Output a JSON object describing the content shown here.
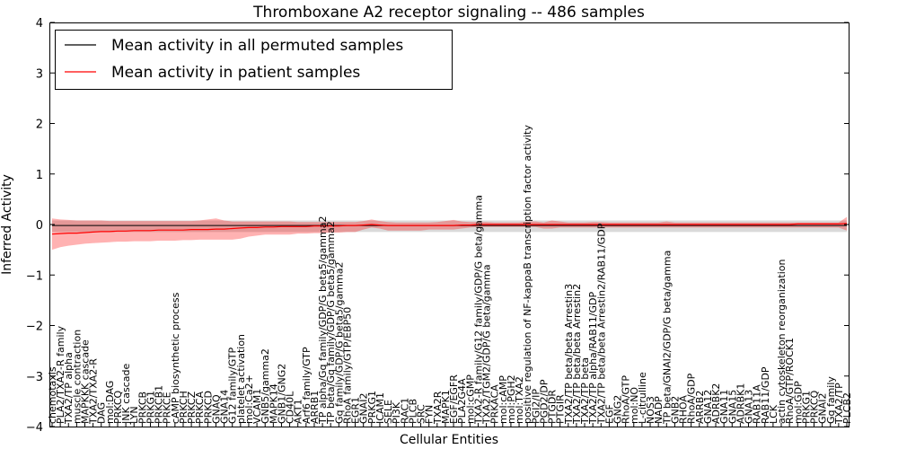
{
  "chart_data": {
    "type": "line",
    "title": "Thromboxane A2 receptor signaling -- 486 samples",
    "xlabel": "Cellular Entities",
    "ylabel": "Inferred Activity",
    "ylim": [
      -4,
      4
    ],
    "yticks": [
      -4,
      -3,
      -2,
      -1,
      0,
      1,
      2,
      3,
      4
    ],
    "grid": false,
    "legend_position": "top-left",
    "legend": [
      {
        "label": "Mean activity in all permuted samples",
        "color": "#000000"
      },
      {
        "label": "Mean activity in patient samples",
        "color": "#ff0000"
      }
    ],
    "categories": [
      "chemotaxis",
      "PLA2/TXA2-R family",
      "TXA2/TP alpha",
      "muscle contraction",
      "MAPKKK cascade",
      "TXA2/TXA2-R",
      "DAG",
      "mol:DAG",
      "PRKCQ",
      "JNK cascade",
      "LYN",
      "PRKCB",
      "PRKG1",
      "PRKCB1",
      "PRKCE",
      "cAMP biosynthetic process",
      "PRKCH",
      "PRKCZ",
      "PRKCA",
      "PRKCD",
      "GNAQ",
      "GNA14",
      "G12 family/GTP",
      "platelet activation",
      "mol:Ca2+",
      "VCAM1",
      "GNB5/gamma2",
      "MAPK14",
      "GNB1/GNG2",
      "CD40L",
      "AKT1",
      "Arf6 family/GTP",
      "ARRB1",
      "TP alpha/Gq family/GDP/G beta5/gamma2",
      "TP beta/Gq family/GDP/G beta5/gamma2",
      "Gq family/GDP/G beta5/gamma2",
      "RhoA family/GTP/EBP50",
      "EGR1",
      "GNAI2",
      "PRKG1",
      "ICAM1",
      "SELE",
      "PI3K",
      "RAC1",
      "PLCB",
      "SRC",
      "FYN",
      "TXA2R",
      "MAPK1",
      "EGF/EGFR",
      "PLA2G4A",
      "mol:cGMP",
      "TXA2-R family/G12 family/GDP/G beta/gamma",
      "TXA2/TGM2/GDP/G beta/gamma",
      "PRKACA",
      "mol:cAMP",
      "mol:PGH2",
      "mol:TXA2",
      "positive regulation of NF-kappaB transcription factor activity",
      "PGI2/IP",
      "PGD2/DP",
      "PTGDR",
      "PTGIR",
      "TXA2/TP beta/beta Arrestin3",
      "TXA2/TP beta/beta Arrestin2",
      "TXA2/TP beta",
      "TXA2/TP alpha/RAB11/GDP",
      "TXA2/TP beta/beta Arrestin2/RAB11/GDP",
      "EGF",
      "GNG2",
      "RhoA/GTP",
      "mol:NO",
      "L-citrulline",
      "NOS3",
      "NADP",
      "TP beta/GNAI2/GDP/G beta/gamma",
      "GNB2",
      "RHOA",
      "RhoA/GDP",
      "ARRB2",
      "GNA12",
      "ADRBK2",
      "GNA11",
      "GNA15",
      "ADRBK1",
      "GNA13",
      "RAB11A",
      "RAB11/GDP",
      "LCK",
      "actin cytoskeleton reorganization",
      "RhoA/GTP/ROCK1",
      "mol:GDP",
      "PRKG1",
      "PRKCQ",
      "GNAI2",
      "Gq family",
      "TXA2/TP",
      "PLCB2"
    ],
    "series": [
      {
        "name": "Mean activity in all permuted samples",
        "color": "#000000",
        "values": [
          -0.02,
          -0.02,
          -0.02,
          -0.02,
          -0.02,
          -0.02,
          -0.02,
          -0.02,
          -0.02,
          -0.02,
          -0.02,
          -0.02,
          -0.02,
          -0.02,
          -0.02,
          -0.02,
          -0.02,
          -0.02,
          -0.02,
          -0.02,
          -0.02,
          -0.02,
          -0.02,
          -0.02,
          -0.02,
          -0.02,
          -0.02,
          -0.02,
          -0.02,
          -0.02,
          -0.02,
          -0.02,
          -0.02,
          -0.02,
          -0.02,
          -0.02,
          -0.02,
          -0.02,
          -0.02,
          -0.02,
          -0.02,
          -0.02,
          -0.02,
          -0.02,
          -0.02,
          -0.02,
          -0.02,
          -0.02,
          -0.02,
          -0.02,
          -0.02,
          -0.02,
          -0.02,
          -0.02,
          -0.02,
          -0.02,
          -0.02,
          -0.02,
          -0.02,
          -0.02,
          -0.02,
          -0.02,
          -0.02,
          -0.02,
          -0.02,
          -0.02,
          -0.02,
          -0.02,
          -0.02,
          -0.02,
          -0.02,
          -0.02,
          -0.02,
          -0.02,
          -0.02,
          -0.02,
          -0.02,
          -0.02,
          -0.02,
          -0.02,
          -0.02,
          -0.02,
          -0.02,
          -0.02,
          -0.02,
          -0.02,
          -0.02,
          -0.02,
          -0.02,
          -0.02,
          -0.02,
          -0.02,
          -0.02,
          -0.02,
          -0.02,
          -0.02,
          -0.02,
          -0.02
        ],
        "lower": [
          -0.15,
          -0.15,
          -0.15,
          -0.15,
          -0.15,
          -0.15,
          -0.15,
          -0.15,
          -0.15,
          -0.15,
          -0.15,
          -0.15,
          -0.15,
          -0.15,
          -0.15,
          -0.15,
          -0.15,
          -0.15,
          -0.15,
          -0.15,
          -0.15,
          -0.15,
          -0.15,
          -0.15,
          -0.15,
          -0.15,
          -0.15,
          -0.15,
          -0.15,
          -0.15,
          -0.15,
          -0.15,
          -0.15,
          -0.15,
          -0.15,
          -0.15,
          -0.15,
          -0.15,
          -0.15,
          -0.15,
          -0.15,
          -0.15,
          -0.15,
          -0.15,
          -0.15,
          -0.15,
          -0.15,
          -0.15,
          -0.15,
          -0.15,
          -0.15,
          -0.15,
          -0.15,
          -0.15,
          -0.15,
          -0.15,
          -0.15,
          -0.15,
          -0.15,
          -0.15,
          -0.15,
          -0.15,
          -0.15,
          -0.15,
          -0.15,
          -0.15,
          -0.15,
          -0.15,
          -0.15,
          -0.15,
          -0.15,
          -0.15,
          -0.15,
          -0.15,
          -0.15,
          -0.15,
          -0.15,
          -0.15,
          -0.15,
          -0.15,
          -0.15,
          -0.15,
          -0.15,
          -0.15,
          -0.15,
          -0.15,
          -0.15,
          -0.15,
          -0.15,
          -0.15,
          -0.15,
          -0.15,
          -0.15,
          -0.15,
          -0.15,
          -0.15,
          -0.15,
          -0.15
        ],
        "upper": [
          0.08,
          0.08,
          0.08,
          0.08,
          0.08,
          0.08,
          0.08,
          0.08,
          0.08,
          0.08,
          0.08,
          0.08,
          0.08,
          0.08,
          0.08,
          0.08,
          0.08,
          0.08,
          0.08,
          0.08,
          0.08,
          0.08,
          0.08,
          0.08,
          0.08,
          0.08,
          0.08,
          0.08,
          0.08,
          0.08,
          0.08,
          0.08,
          0.08,
          0.08,
          0.08,
          0.08,
          0.08,
          0.08,
          0.08,
          0.08,
          0.08,
          0.08,
          0.08,
          0.08,
          0.08,
          0.08,
          0.08,
          0.08,
          0.08,
          0.08,
          0.08,
          0.08,
          0.08,
          0.08,
          0.08,
          0.08,
          0.08,
          0.08,
          0.08,
          0.08,
          0.08,
          0.08,
          0.08,
          0.08,
          0.08,
          0.08,
          0.08,
          0.08,
          0.08,
          0.08,
          0.08,
          0.08,
          0.08,
          0.08,
          0.08,
          0.08,
          0.08,
          0.08,
          0.08,
          0.08,
          0.08,
          0.08,
          0.08,
          0.08,
          0.08,
          0.08,
          0.08,
          0.08,
          0.08,
          0.08,
          0.08,
          0.08,
          0.08,
          0.08,
          0.08,
          0.08,
          0.08,
          0.08
        ]
      },
      {
        "name": "Mean activity in patient samples",
        "color": "#ff0000",
        "values": [
          -0.19,
          -0.18,
          -0.17,
          -0.17,
          -0.16,
          -0.15,
          -0.14,
          -0.14,
          -0.13,
          -0.13,
          -0.12,
          -0.12,
          -0.12,
          -0.11,
          -0.11,
          -0.11,
          -0.11,
          -0.1,
          -0.1,
          -0.1,
          -0.09,
          -0.09,
          -0.08,
          -0.07,
          -0.06,
          -0.06,
          -0.05,
          -0.05,
          -0.04,
          -0.04,
          -0.04,
          -0.04,
          -0.03,
          -0.03,
          -0.03,
          -0.03,
          -0.02,
          -0.02,
          -0.01,
          0.0,
          -0.01,
          -0.02,
          -0.02,
          -0.02,
          -0.02,
          -0.02,
          -0.02,
          -0.02,
          -0.02,
          -0.02,
          -0.01,
          -0.01,
          0.0,
          0.0,
          0.0,
          0.0,
          0.0,
          0.0,
          0.0,
          0.0,
          0.0,
          0.0,
          0.0,
          0.0,
          0.0,
          0.0,
          0.0,
          0.0,
          0.0,
          0.0,
          0.0,
          0.0,
          0.0,
          0.0,
          0.0,
          0.0,
          0.0,
          0.0,
          0.0,
          0.0,
          0.0,
          0.0,
          0.0,
          0.0,
          0.0,
          0.0,
          0.0,
          0.0,
          0.0,
          0.0,
          0.0,
          0.01,
          0.01,
          0.01,
          0.01,
          0.01,
          0.01,
          0.02
        ],
        "lower": [
          -0.5,
          -0.45,
          -0.42,
          -0.4,
          -0.38,
          -0.37,
          -0.36,
          -0.35,
          -0.34,
          -0.34,
          -0.33,
          -0.33,
          -0.33,
          -0.32,
          -0.32,
          -0.32,
          -0.31,
          -0.31,
          -0.3,
          -0.3,
          -0.3,
          -0.3,
          -0.3,
          -0.28,
          -0.24,
          -0.22,
          -0.2,
          -0.2,
          -0.2,
          -0.2,
          -0.18,
          -0.18,
          -0.17,
          -0.17,
          -0.16,
          -0.16,
          -0.15,
          -0.15,
          -0.1,
          -0.06,
          -0.08,
          -0.12,
          -0.12,
          -0.12,
          -0.12,
          -0.12,
          -0.1,
          -0.1,
          -0.1,
          -0.1,
          -0.08,
          -0.06,
          -0.05,
          -0.05,
          -0.05,
          -0.05,
          -0.05,
          -0.05,
          -0.05,
          -0.05,
          -0.08,
          -0.08,
          -0.06,
          -0.06,
          -0.06,
          -0.06,
          -0.06,
          -0.06,
          -0.06,
          -0.06,
          -0.06,
          -0.06,
          -0.06,
          -0.06,
          -0.06,
          -0.06,
          -0.06,
          -0.06,
          -0.06,
          -0.06,
          -0.06,
          -0.06,
          -0.06,
          -0.06,
          -0.06,
          -0.06,
          -0.06,
          -0.06,
          -0.06,
          -0.06,
          -0.06,
          -0.06,
          -0.06,
          -0.06,
          -0.06,
          -0.06,
          -0.06,
          -0.12
        ],
        "upper": [
          0.12,
          0.1,
          0.09,
          0.08,
          0.08,
          0.08,
          0.08,
          0.07,
          0.07,
          0.07,
          0.07,
          0.07,
          0.07,
          0.07,
          0.07,
          0.07,
          0.07,
          0.07,
          0.08,
          0.1,
          0.12,
          0.08,
          0.06,
          0.06,
          0.06,
          0.06,
          0.06,
          0.06,
          0.06,
          0.06,
          0.05,
          0.05,
          0.05,
          0.05,
          0.05,
          0.05,
          0.05,
          0.05,
          0.07,
          0.1,
          0.07,
          0.05,
          0.04,
          0.04,
          0.04,
          0.04,
          0.04,
          0.05,
          0.07,
          0.09,
          0.06,
          0.05,
          0.05,
          0.05,
          0.04,
          0.04,
          0.04,
          0.04,
          0.06,
          0.06,
          0.04,
          0.08,
          0.06,
          0.04,
          0.04,
          0.04,
          0.05,
          0.05,
          0.04,
          0.04,
          0.04,
          0.04,
          0.04,
          0.04,
          0.04,
          0.06,
          0.04,
          0.04,
          0.04,
          0.04,
          0.04,
          0.04,
          0.04,
          0.04,
          0.04,
          0.04,
          0.04,
          0.04,
          0.04,
          0.04,
          0.04,
          0.04,
          0.04,
          0.04,
          0.04,
          0.04,
          0.04,
          0.15
        ]
      }
    ]
  }
}
